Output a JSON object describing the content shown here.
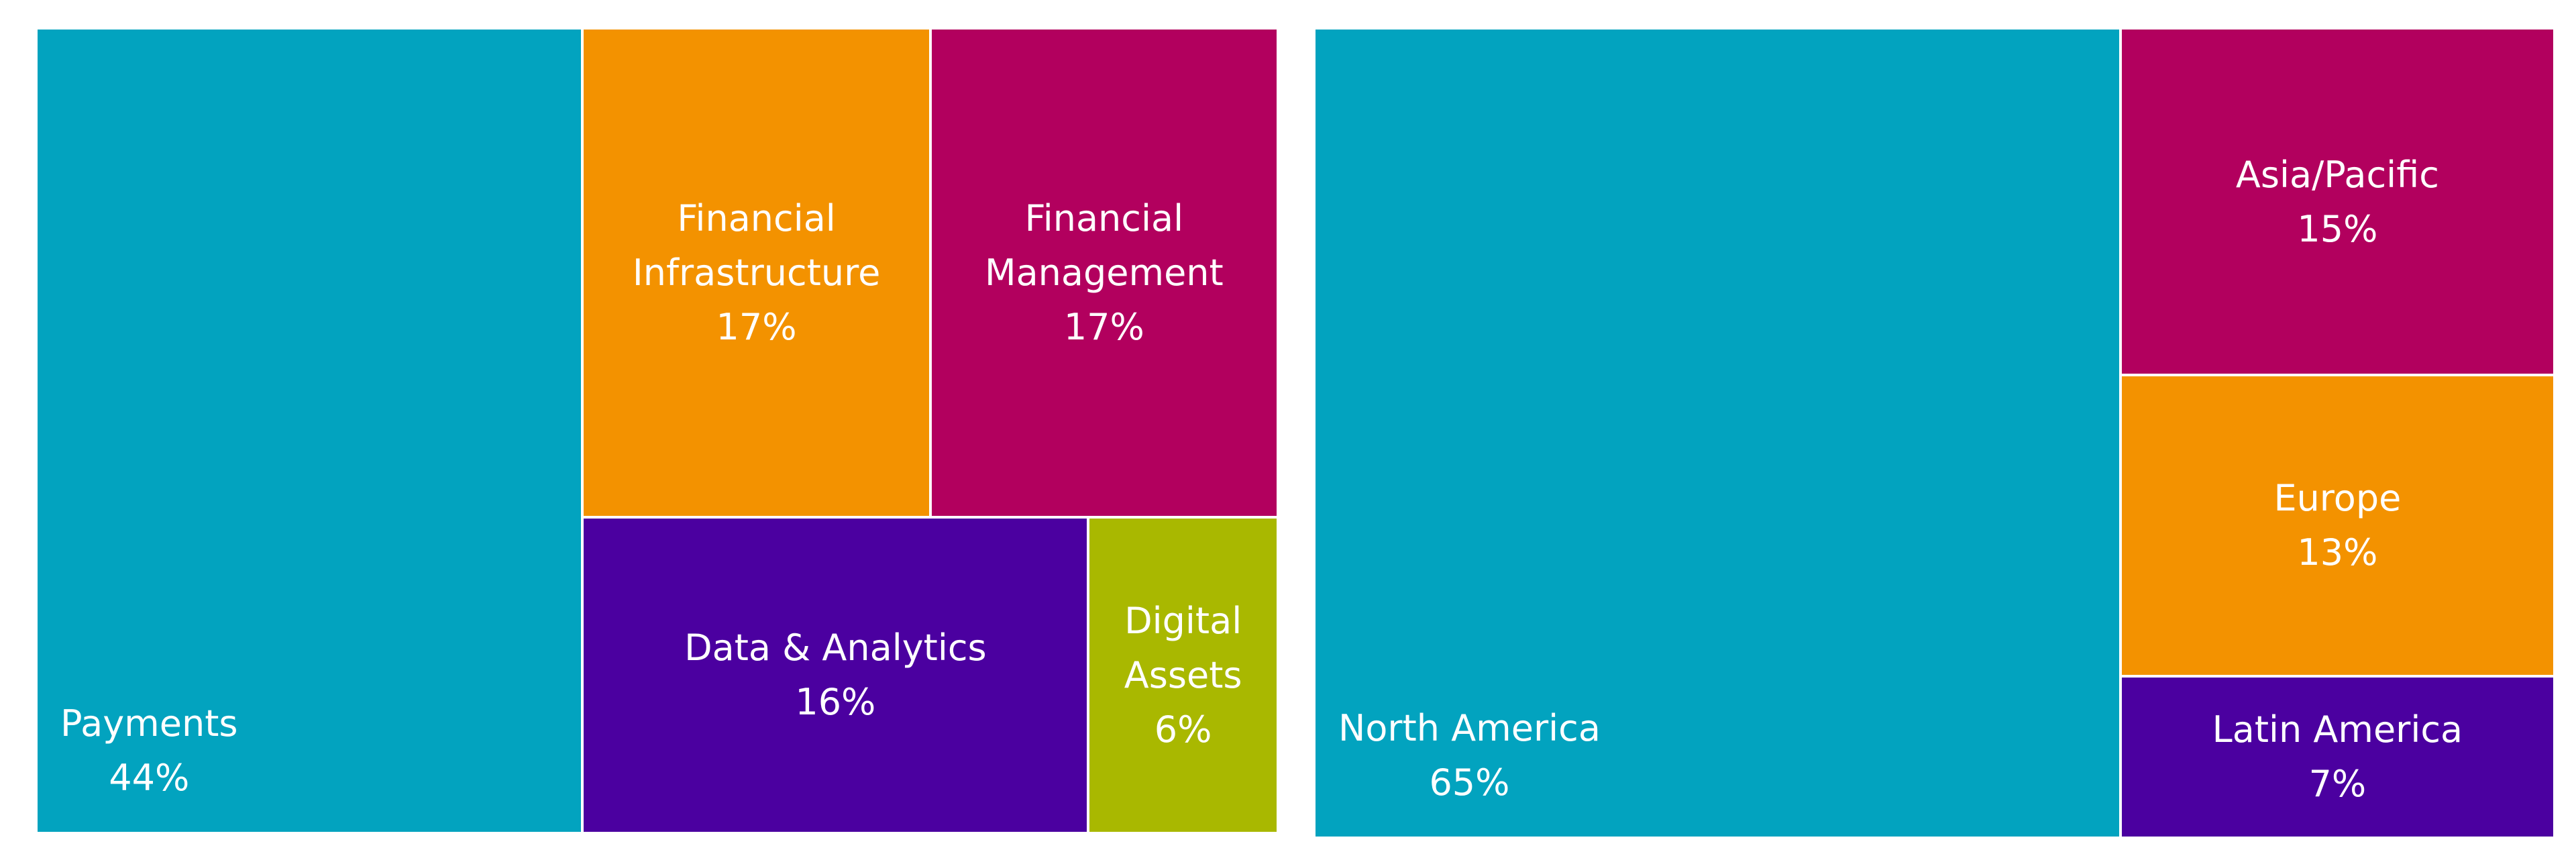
{
  "chart_data": [
    {
      "type": "treemap",
      "categories": [
        "Payments",
        "Financial Infrastructure",
        "Financial Management",
        "Data & Analytics",
        "Digital Assets"
      ],
      "values": [
        44,
        17,
        17,
        16,
        6
      ],
      "value_labels": [
        "44%",
        "17%",
        "17%",
        "16%",
        "6%"
      ],
      "colors": [
        "#02a3bf",
        "#f39200",
        "#b2005e",
        "#4b00a0",
        "#a9b800"
      ]
    },
    {
      "type": "treemap",
      "categories": [
        "North America",
        "Asia/Pacific",
        "Europe",
        "Latin America"
      ],
      "values": [
        65,
        15,
        13,
        7
      ],
      "value_labels": [
        "65%",
        "15%",
        "13%",
        "7%"
      ],
      "colors": [
        "#02a3bf",
        "#b2005e",
        "#f39200",
        "#4b00a0"
      ]
    }
  ]
}
